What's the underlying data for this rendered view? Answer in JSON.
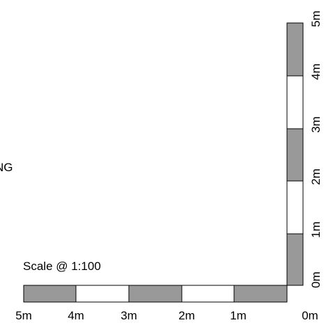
{
  "partial_word": "NG",
  "scale_label": "Scale @ 1:100",
  "bottom_labels": [
    "5m",
    "4m",
    "3m",
    "2m",
    "1m",
    "0m"
  ],
  "right_labels": [
    "0m",
    "1m",
    "2m",
    "3m",
    "4m",
    "5m"
  ],
  "colors": {
    "dark_segment": "#999999",
    "light_segment": "#ffffff",
    "outline": "#000000"
  }
}
